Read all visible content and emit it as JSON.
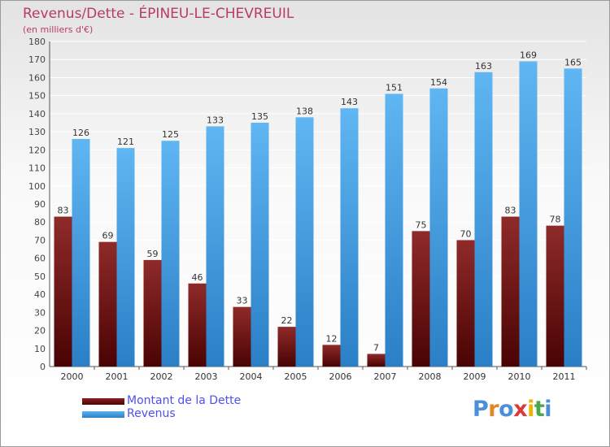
{
  "chart_data": {
    "type": "bar",
    "title": "Revenus/Dette - ÉPINEU-LE-CHEVREUIL",
    "subtitle": "(en milliers d'€)",
    "categories": [
      "2000",
      "2001",
      "2002",
      "2003",
      "2004",
      "2005",
      "2006",
      "2007",
      "2008",
      "2009",
      "2010",
      "2011"
    ],
    "series": [
      {
        "name": "Montant de la Dette",
        "color": "#6b0f0f",
        "values": [
          83,
          69,
          59,
          46,
          33,
          22,
          12,
          7,
          75,
          70,
          83,
          78
        ]
      },
      {
        "name": "Revenus",
        "color": "#3d9de2",
        "values": [
          126,
          121,
          125,
          133,
          135,
          138,
          143,
          151,
          154,
          163,
          169,
          165
        ]
      }
    ],
    "ylim": [
      0,
      180
    ],
    "yticks": [
      0,
      10,
      20,
      30,
      40,
      50,
      60,
      70,
      80,
      90,
      100,
      110,
      120,
      130,
      140,
      150,
      160,
      170,
      180
    ],
    "grid": true,
    "legend_position": "bottom-left"
  },
  "logo": {
    "text": "Proxiti",
    "colors": [
      "#4a90d9",
      "#e0872a",
      "#4a90d9",
      "#d93a3a",
      "#f0b400",
      "#4aa84a",
      "#4a90d9"
    ]
  }
}
